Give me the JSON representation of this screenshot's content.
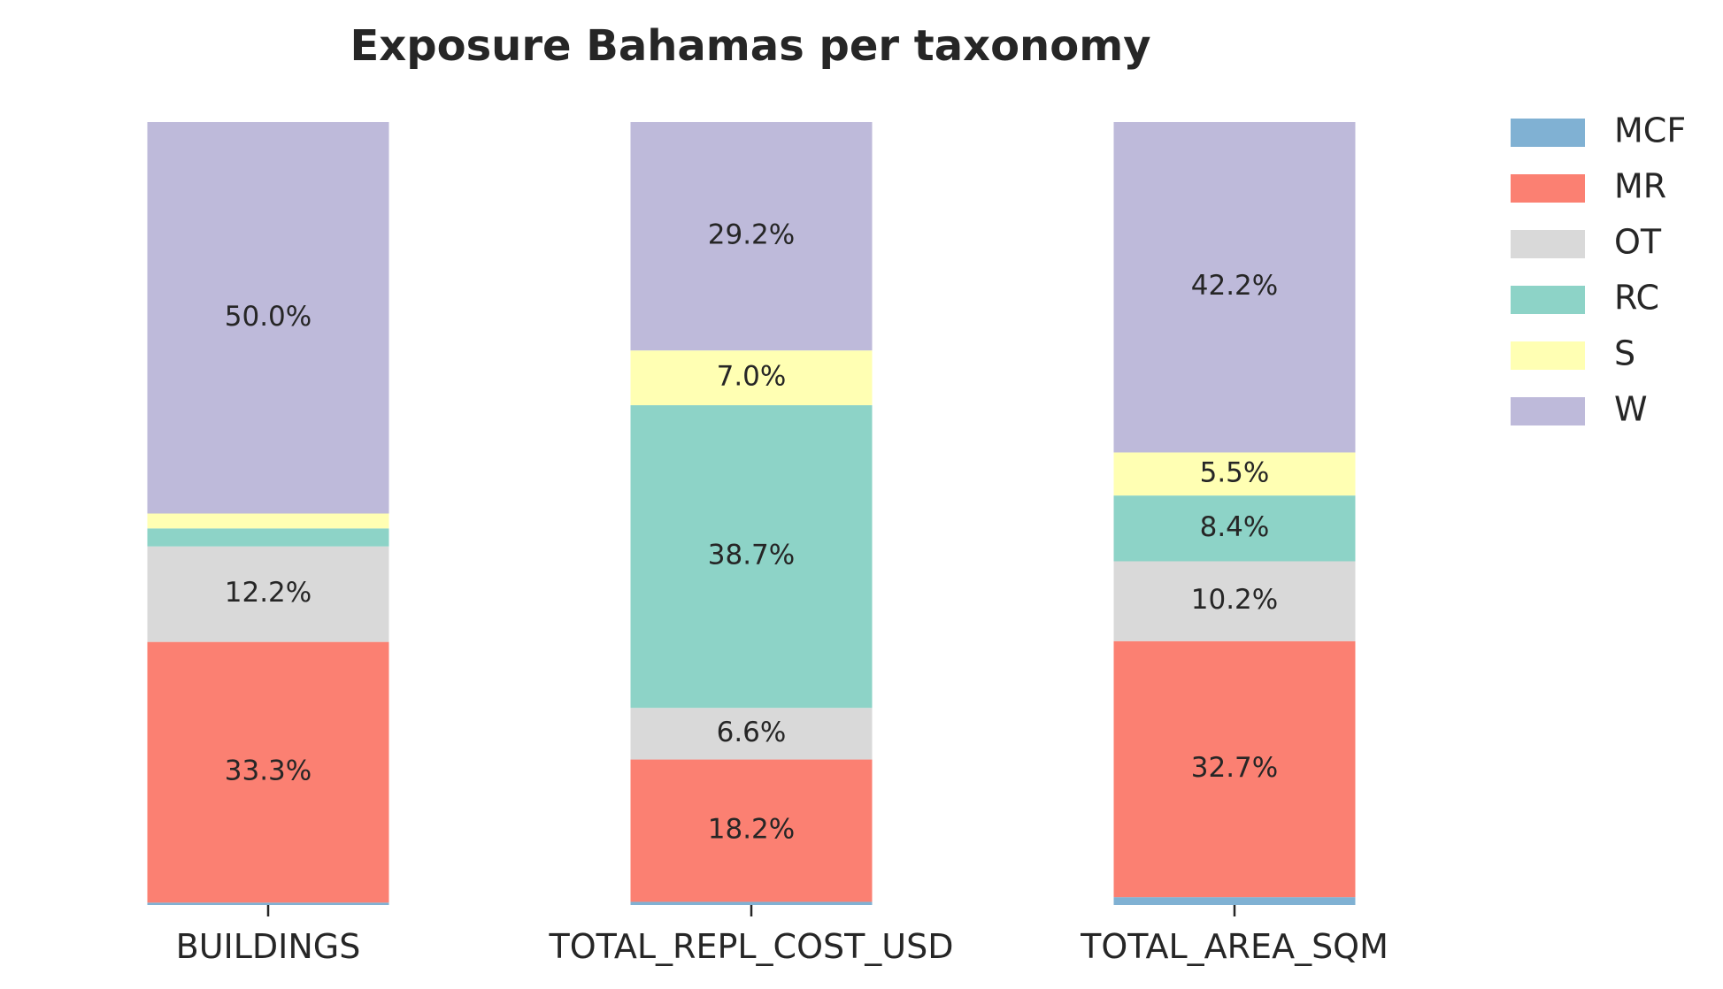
{
  "chart_data": {
    "type": "bar",
    "stacked": true,
    "title": "Exposure Bahamas per taxonomy",
    "xlabel": "",
    "ylabel": "",
    "ylim": [
      0,
      100
    ],
    "grid": false,
    "legend_position": "upper-right",
    "categories": [
      "BUILDINGS",
      "TOTAL_REPL_COST_USD",
      "TOTAL_AREA_SQM"
    ],
    "series": [
      {
        "name": "MCF",
        "color": "#80b1d3",
        "values": [
          0.3,
          0.4,
          1.0
        ],
        "labels": [
          "",
          "",
          ""
        ]
      },
      {
        "name": "MR",
        "color": "#fb8072",
        "values": [
          33.3,
          18.2,
          32.7
        ],
        "labels": [
          "33.3%",
          "18.2%",
          "32.7%"
        ]
      },
      {
        "name": "OT",
        "color": "#d9d9d9",
        "values": [
          12.2,
          6.6,
          10.2
        ],
        "labels": [
          "12.2%",
          "6.6%",
          "10.2%"
        ]
      },
      {
        "name": "RC",
        "color": "#8dd3c7",
        "values": [
          2.3,
          38.7,
          8.4
        ],
        "labels": [
          "",
          "38.7%",
          "8.4%"
        ]
      },
      {
        "name": "S",
        "color": "#ffffb3",
        "values": [
          1.9,
          7.0,
          5.5
        ],
        "labels": [
          "",
          "7.0%",
          "5.5%"
        ]
      },
      {
        "name": "W",
        "color": "#bebada",
        "values": [
          50.0,
          29.2,
          42.2
        ],
        "labels": [
          "50.0%",
          "29.2%",
          "42.2%"
        ]
      }
    ]
  }
}
